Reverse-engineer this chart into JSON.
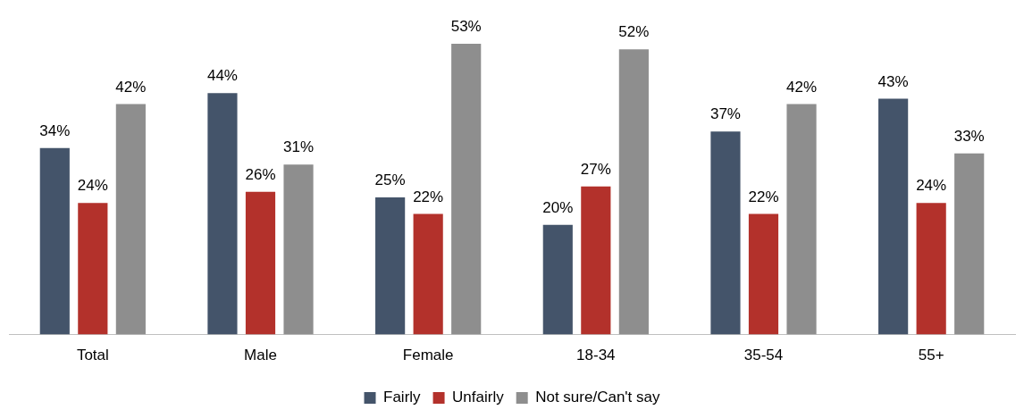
{
  "chart_data": {
    "type": "bar",
    "categories": [
      "Total",
      "Male",
      "Female",
      "18-34",
      "35-54",
      "55+"
    ],
    "series": [
      {
        "name": "Fairly",
        "color": "#44546a",
        "values": [
          34,
          44,
          25,
          20,
          37,
          43
        ],
        "value_labels": [
          "34%",
          "44%",
          "25%",
          "20%",
          "37%",
          "43%"
        ]
      },
      {
        "name": "Unfairly",
        "color": "#b3312b",
        "values": [
          24,
          26,
          22,
          27,
          22,
          24
        ],
        "value_labels": [
          "24%",
          "26%",
          "22%",
          "27%",
          "22%",
          "24%"
        ]
      },
      {
        "name": "Not sure/Can't say",
        "color": "#8e8e8e",
        "values": [
          42,
          31,
          53,
          52,
          42,
          33
        ],
        "value_labels": [
          "42%",
          "31%",
          "53%",
          "52%",
          "42%",
          "33%"
        ]
      }
    ],
    "legend": "bottom",
    "grid": false,
    "tick_labels": "x"
  }
}
